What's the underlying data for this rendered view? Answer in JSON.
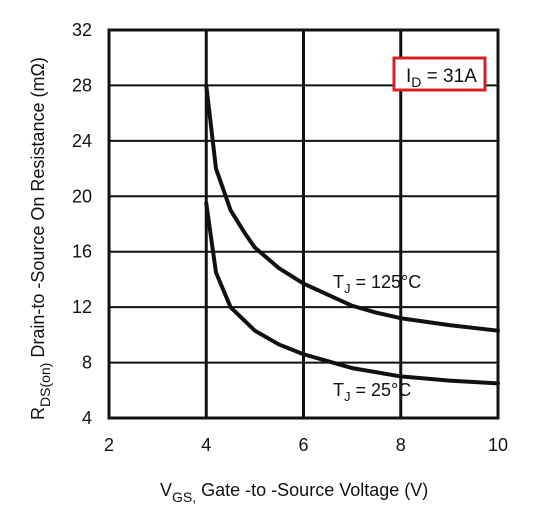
{
  "chart_data": {
    "type": "line",
    "title": "",
    "xlabel": {
      "main": "V",
      "sub": "GS,",
      "rest": " Gate -to -Source Voltage  (V)"
    },
    "ylabel": {
      "main": "R",
      "sub": "DS(on)",
      "rest": "  Drain-to -Source On Resistance (mΩ)"
    },
    "xlim": [
      2,
      10
    ],
    "ylim": [
      4,
      32
    ],
    "x_ticks": [
      2,
      4,
      6,
      8,
      10
    ],
    "y_ticks": [
      4,
      8,
      12,
      16,
      20,
      24,
      28,
      32
    ],
    "grid": true,
    "annotation": {
      "prefix": "I",
      "sub": "D",
      "suffix": " = 31A",
      "border_color": "#d42020"
    },
    "series": [
      {
        "name": "T_J = 125°C",
        "label": {
          "prefix": "T",
          "sub": "J",
          "suffix": " = 125°C"
        },
        "color": "#111111",
        "points": [
          [
            4.0,
            28.0
          ],
          [
            4.2,
            22.0
          ],
          [
            4.5,
            19.0
          ],
          [
            4.8,
            17.3
          ],
          [
            5.0,
            16.3
          ],
          [
            5.5,
            14.8
          ],
          [
            6.0,
            13.7
          ],
          [
            6.5,
            12.9
          ],
          [
            7.0,
            12.1
          ],
          [
            7.5,
            11.6
          ],
          [
            8.0,
            11.2
          ],
          [
            9.0,
            10.7
          ],
          [
            10.0,
            10.3
          ]
        ]
      },
      {
        "name": "T_J = 25°C",
        "label": {
          "prefix": "T",
          "sub": "J",
          "suffix": " = 25°C"
        },
        "color": "#111111",
        "points": [
          [
            4.0,
            19.5
          ],
          [
            4.2,
            14.5
          ],
          [
            4.5,
            12.0
          ],
          [
            5.0,
            10.3
          ],
          [
            5.5,
            9.3
          ],
          [
            6.0,
            8.6
          ],
          [
            6.5,
            8.1
          ],
          [
            7.0,
            7.6
          ],
          [
            7.5,
            7.3
          ],
          [
            8.0,
            7.0
          ],
          [
            9.0,
            6.7
          ],
          [
            10.0,
            6.5
          ]
        ]
      }
    ]
  }
}
